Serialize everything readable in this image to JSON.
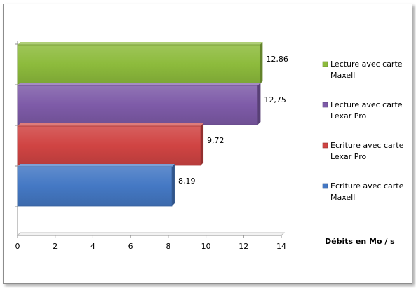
{
  "chart_data": {
    "type": "bar",
    "orientation": "horizontal",
    "xlabel": "Débits en Mo / s",
    "xlim": [
      0,
      14
    ],
    "x_ticks": [
      0,
      2,
      4,
      6,
      8,
      10,
      12,
      14
    ],
    "x_tick_labels": [
      "0",
      "2",
      "4",
      "6",
      "8",
      "10",
      "12",
      "14"
    ],
    "grid": false,
    "legend_position": "right",
    "bar_style": "3d",
    "series": [
      {
        "name": "Lecture avec carte Maxell",
        "legend_lines": [
          "Lecture avec carte",
          "Maxell"
        ],
        "value": 12.86,
        "label": "12,86",
        "color": "#8dbb3c"
      },
      {
        "name": "Lecture avec carte Lexar Pro",
        "legend_lines": [
          "Lecture avec carte",
          "Lexar Pro"
        ],
        "value": 12.75,
        "label": "12,75",
        "color": "#7e5ba8"
      },
      {
        "name": "Ecriture avec carte Lexar Pro",
        "legend_lines": [
          "Ecriture avec carte",
          "Lexar Pro"
        ],
        "value": 9.72,
        "label": "9,72",
        "color": "#d04443"
      },
      {
        "name": "Ecriture avec carte Maxell",
        "legend_lines": [
          "Ecriture avec carte",
          "Maxell"
        ],
        "value": 8.19,
        "label": "8,19",
        "color": "#4478c4"
      }
    ]
  }
}
